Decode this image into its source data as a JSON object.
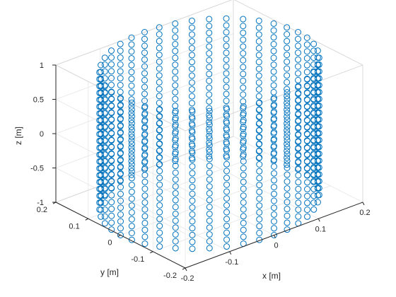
{
  "chart_data": {
    "type": "scatter",
    "projection": "3d",
    "marker": "circle",
    "marker_color": "#0072BD",
    "grid": true,
    "box": true,
    "xlabel": "x [m]",
    "ylabel": "y [m]",
    "zlabel": "z [m]",
    "xlim": [
      -0.2,
      0.2
    ],
    "ylim": [
      -0.2,
      0.2
    ],
    "zlim": [
      -1,
      1
    ],
    "x_ticks": [
      "-0.2",
      "-0.1",
      "0",
      "0.1",
      "0.2"
    ],
    "y_ticks": [
      "-0.2",
      "-0.1",
      "0",
      "0.1",
      "0.2"
    ],
    "z_ticks": [
      "-1",
      "-0.5",
      "0",
      "0.5",
      "1"
    ],
    "x_tick_values": [
      -0.2,
      -0.1,
      0,
      0.1,
      0.2
    ],
    "y_tick_values": [
      -0.2,
      -0.1,
      0,
      0.1,
      0.2
    ],
    "z_tick_values": [
      -1,
      -0.5,
      0,
      0.5,
      1
    ],
    "cylinder": {
      "radius": 0.2,
      "center": [
        0,
        0
      ],
      "z_min": -1,
      "z_max": 1,
      "points_around": 40,
      "points_along_z": 21
    }
  }
}
